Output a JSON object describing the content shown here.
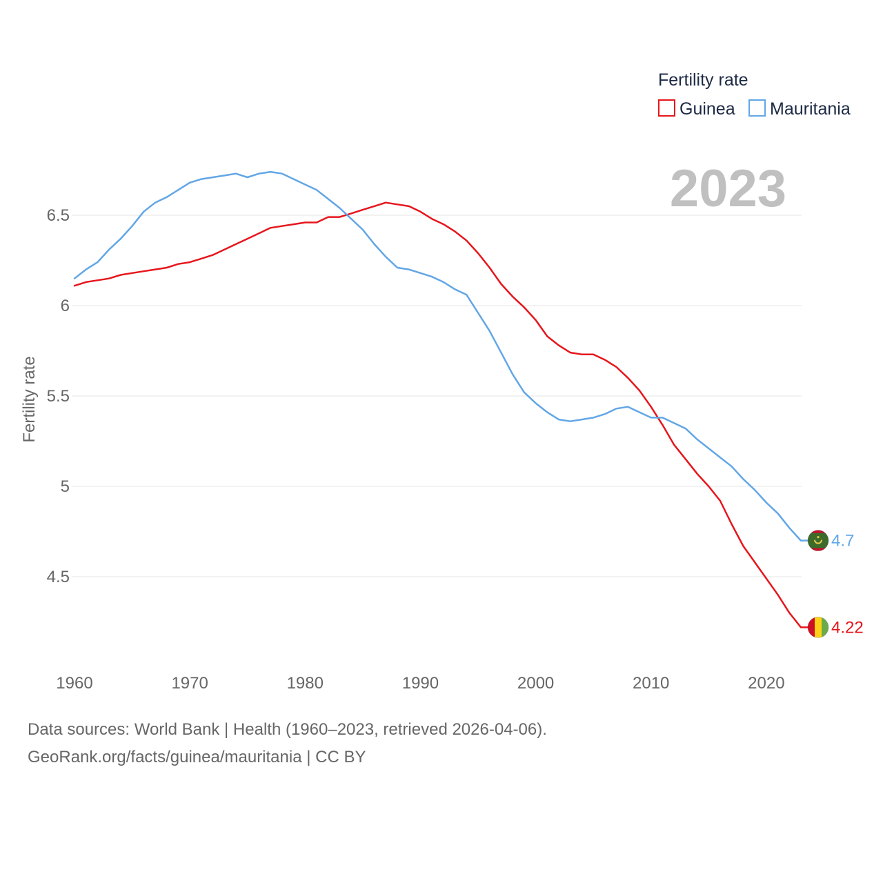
{
  "chart_data": {
    "type": "line",
    "ylabel": "Fertility rate",
    "xlim": [
      1960,
      2023
    ],
    "ylim": [
      4.1,
      6.85
    ],
    "x_ticks": [
      "1960",
      "1970",
      "1980",
      "1990",
      "2000",
      "2010",
      "2020"
    ],
    "y_ticks": [
      "6.5",
      "6",
      "5.5",
      "5",
      "4.5"
    ],
    "legend_title": "Fertility rate",
    "year_label": "2023",
    "x": [
      1960,
      1961,
      1962,
      1963,
      1964,
      1965,
      1966,
      1967,
      1968,
      1969,
      1970,
      1971,
      1972,
      1973,
      1974,
      1975,
      1976,
      1977,
      1978,
      1979,
      1980,
      1981,
      1982,
      1983,
      1984,
      1985,
      1986,
      1987,
      1988,
      1989,
      1990,
      1991,
      1992,
      1993,
      1994,
      1995,
      1996,
      1997,
      1998,
      1999,
      2000,
      2001,
      2002,
      2003,
      2004,
      2005,
      2006,
      2007,
      2008,
      2009,
      2010,
      2011,
      2012,
      2013,
      2014,
      2015,
      2016,
      2017,
      2018,
      2019,
      2020,
      2021,
      2022,
      2023
    ],
    "series": [
      {
        "name": "Guinea",
        "color": "#e6161c",
        "end_label": "4.22",
        "flag": "guinea-flag",
        "values": [
          6.11,
          6.13,
          6.14,
          6.15,
          6.17,
          6.18,
          6.19,
          6.2,
          6.21,
          6.23,
          6.24,
          6.26,
          6.28,
          6.31,
          6.34,
          6.37,
          6.4,
          6.43,
          6.44,
          6.45,
          6.46,
          6.46,
          6.49,
          6.49,
          6.51,
          6.53,
          6.55,
          6.57,
          6.56,
          6.55,
          6.52,
          6.48,
          6.45,
          6.41,
          6.36,
          6.29,
          6.21,
          6.12,
          6.05,
          5.99,
          5.92,
          5.83,
          5.78,
          5.74,
          5.73,
          5.73,
          5.7,
          5.66,
          5.6,
          5.53,
          5.44,
          5.34,
          5.23,
          5.15,
          5.07,
          5.0,
          4.92,
          4.79,
          4.67,
          4.58,
          4.49,
          4.4,
          4.3,
          4.22
        ]
      },
      {
        "name": "Mauritania",
        "color": "#62a6e6",
        "end_label": "4.7",
        "flag": "mauritania-flag",
        "values": [
          6.15,
          6.2,
          6.24,
          6.31,
          6.37,
          6.44,
          6.52,
          6.57,
          6.6,
          6.64,
          6.68,
          6.7,
          6.71,
          6.72,
          6.73,
          6.71,
          6.73,
          6.74,
          6.73,
          6.7,
          6.67,
          6.64,
          6.59,
          6.54,
          6.48,
          6.42,
          6.34,
          6.27,
          6.21,
          6.2,
          6.18,
          6.16,
          6.13,
          6.09,
          6.06,
          5.96,
          5.86,
          5.74,
          5.62,
          5.52,
          5.46,
          5.41,
          5.37,
          5.36,
          5.37,
          5.38,
          5.4,
          5.43,
          5.44,
          5.41,
          5.38,
          5.38,
          5.35,
          5.32,
          5.26,
          5.21,
          5.16,
          5.11,
          5.04,
          4.98,
          4.91,
          4.85,
          4.77,
          4.7
        ]
      }
    ]
  },
  "footer": {
    "line1": "Data sources: World Bank | Health (1960–2023, retrieved 2026-04-06).",
    "line2": "GeoRank.org/facts/guinea/mauritania | CC BY"
  }
}
